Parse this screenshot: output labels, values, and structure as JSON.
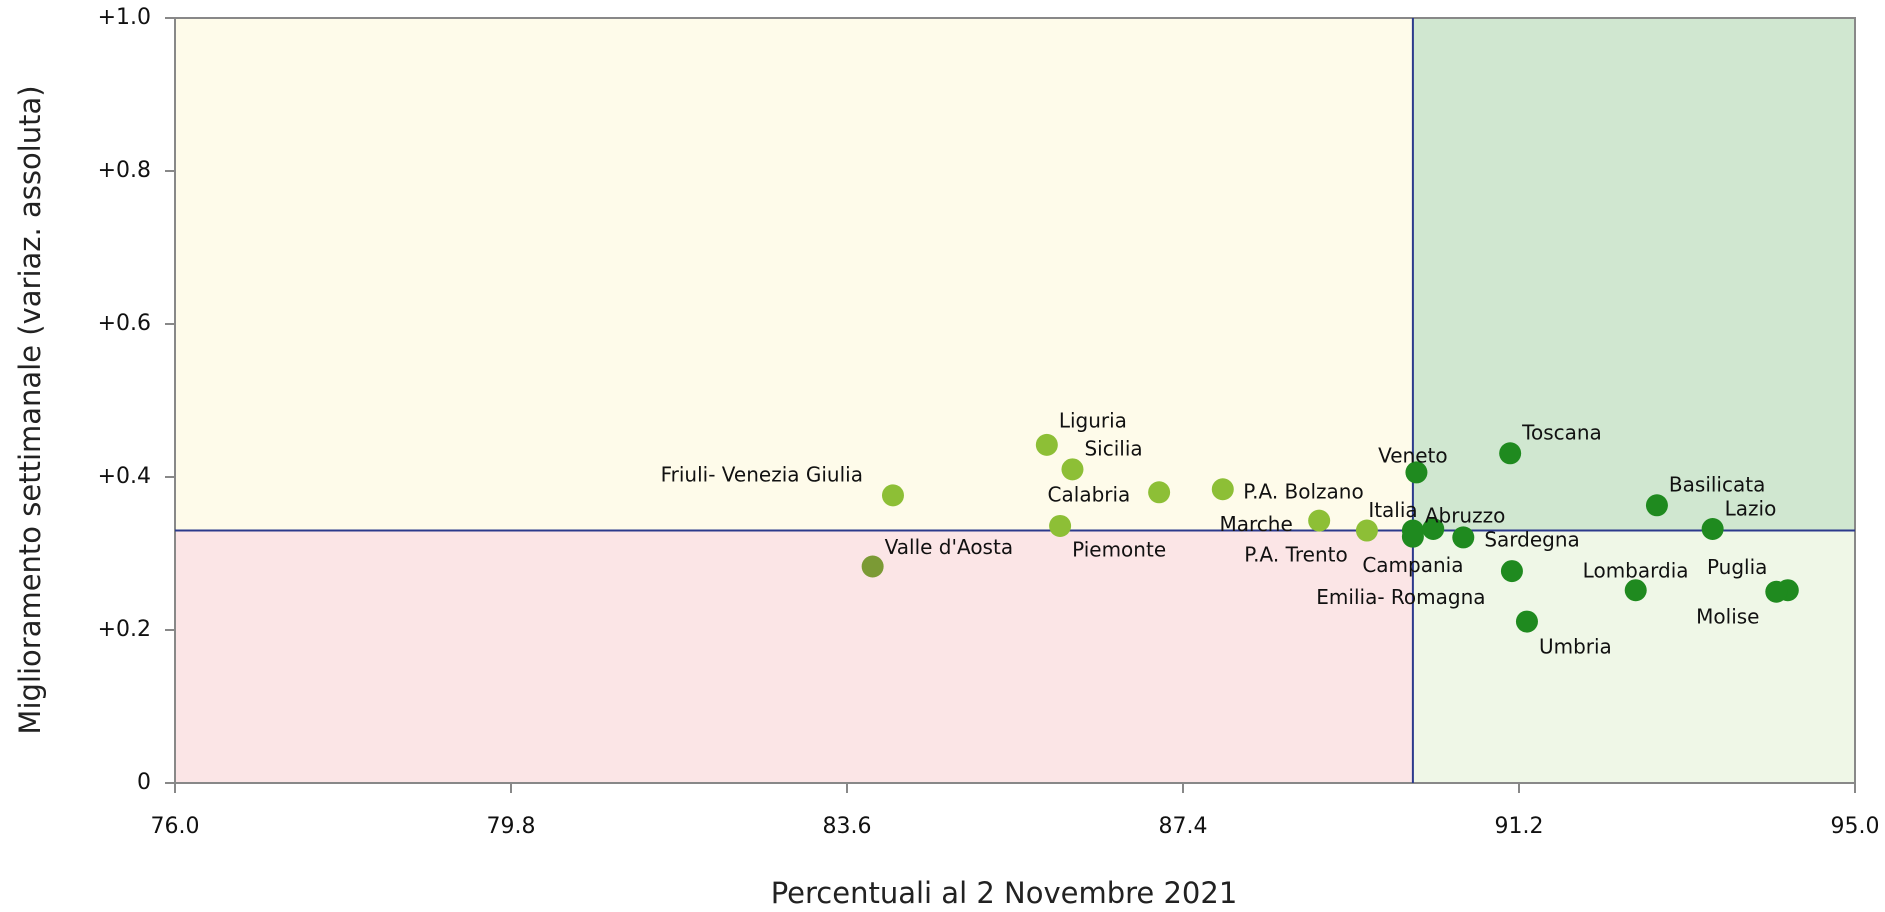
{
  "chart_data": {
    "type": "scatter",
    "xlabel": "Percentuali al 2  Novembre 2021",
    "ylabel": "Miglioramento settimanale (variaz. assoluta)",
    "xlim": [
      76.0,
      95.0
    ],
    "ylim": [
      0,
      1.0
    ],
    "xticks": [
      {
        "value": 76.0,
        "label": "76.0"
      },
      79.8,
      83.6,
      87.4,
      91.2,
      {
        "value": 95.0,
        "label": "95.0"
      }
    ],
    "yticks": [
      0,
      {
        "value": 0.2,
        "label": "+0.2"
      },
      {
        "value": 0.4,
        "label": "+0.4"
      },
      {
        "value": 0.6,
        "label": "+0.6"
      },
      {
        "value": 0.8,
        "label": "+0.8"
      },
      {
        "value": 1.0,
        "label": "+1.0"
      }
    ],
    "reference_x": 90.0,
    "reference_y": 0.33,
    "quadrant_colors": {
      "top_left": "#fefbea",
      "top_right": "#d0e7d0",
      "bottom_left": "#fbe5e6",
      "bottom_right": "#eff7e7"
    },
    "reference_color": "#2b3a8c",
    "points": [
      {
        "name": "Valle d'Aosta",
        "x": 83.89,
        "y": 0.283,
        "color": "#7b9a35"
      },
      {
        "name": "Friuli- Venezia Giulia",
        "x": 84.12,
        "y": 0.376,
        "color": "#8dbf36"
      },
      {
        "name": "Liguria",
        "x": 85.86,
        "y": 0.442,
        "color": "#8dbf36"
      },
      {
        "name": "Sicilia",
        "x": 86.15,
        "y": 0.41,
        "color": "#8dbf36"
      },
      {
        "name": "Piemonte",
        "x": 86.01,
        "y": 0.336,
        "color": "#8dbf36"
      },
      {
        "name": "Calabria",
        "x": 87.13,
        "y": 0.38,
        "color": "#8dbf36"
      },
      {
        "name": "P.A. Bolzano",
        "x": 87.85,
        "y": 0.384,
        "color": "#8dbf36"
      },
      {
        "name": "Marche",
        "x": 88.94,
        "y": 0.343,
        "color": "#8dbf36"
      },
      {
        "name": "P.A. Trento",
        "x": 89.48,
        "y": 0.33,
        "color": "#8dbf36"
      },
      {
        "name": "Italia",
        "x": 90.0,
        "y": 0.33,
        "color": "#1f8a1f"
      },
      {
        "name": "Veneto",
        "x": 90.04,
        "y": 0.406,
        "color": "#1f8a1f"
      },
      {
        "name": "Abruzzo",
        "x": 90.23,
        "y": 0.332,
        "color": "#1f8a1f"
      },
      {
        "name": "Campania",
        "x": 90.0,
        "y": 0.322,
        "color": "#1f8a1f"
      },
      {
        "name": "Emilia- Romagna",
        "x": 90.57,
        "y": 0.321,
        "color": "#1f8a1f"
      },
      {
        "name": "Sardegna",
        "x": 91.12,
        "y": 0.277,
        "color": "#1f8a1f"
      },
      {
        "name": "Toscana",
        "x": 91.1,
        "y": 0.431,
        "color": "#1f8a1f"
      },
      {
        "name": "Umbria",
        "x": 91.29,
        "y": 0.211,
        "color": "#1f8a1f"
      },
      {
        "name": "Lombardia",
        "x": 92.52,
        "y": 0.252,
        "color": "#1f8a1f"
      },
      {
        "name": "Basilicata",
        "x": 92.76,
        "y": 0.363,
        "color": "#1f8a1f"
      },
      {
        "name": "Lazio",
        "x": 93.39,
        "y": 0.332,
        "color": "#1f8a1f"
      },
      {
        "name": "Puglia",
        "x": 94.24,
        "y": 0.252,
        "color": "#1f8a1f"
      },
      {
        "name": "Molise",
        "x": 94.11,
        "y": 0.25,
        "color": "#1f8a1f"
      }
    ]
  }
}
